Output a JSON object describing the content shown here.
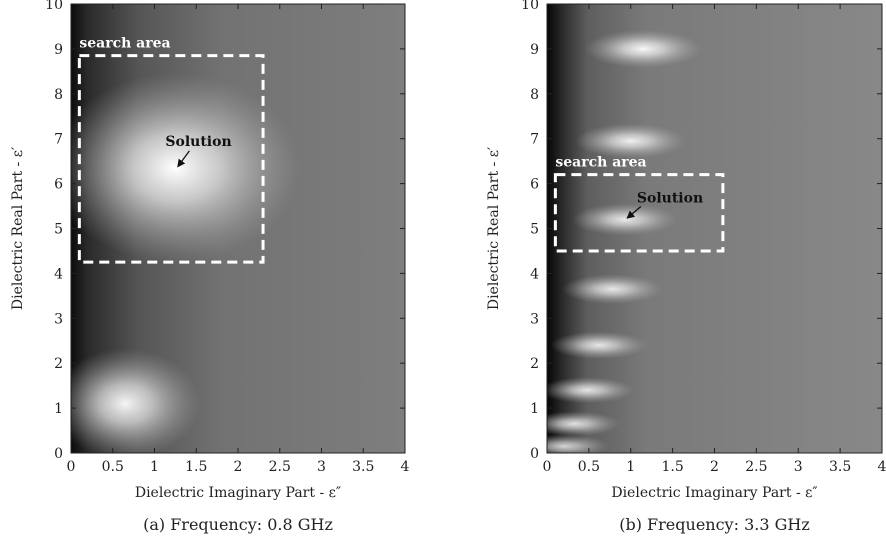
{
  "chart_data": [
    {
      "type": "heatmap",
      "caption": "(a) Frequency: 0.8 GHz",
      "xlabel": "Dielectric Imaginary Part - ε″",
      "ylabel": "Dielectric Real Part - ε′",
      "xlim": [
        0,
        4
      ],
      "ylim": [
        0,
        10
      ],
      "xticks": [
        "0",
        "0.5",
        "1",
        "1.5",
        "2",
        "2.5",
        "3",
        "3.5",
        "4"
      ],
      "yticks": [
        "0",
        "1",
        "2",
        "3",
        "4",
        "5",
        "6",
        "7",
        "8",
        "9",
        "10"
      ],
      "colormap": "grayscale",
      "peaks": [
        {
          "x": 1.25,
          "y": 6.35,
          "intensity": 1.0
        },
        {
          "x": 0.65,
          "y": 1.1,
          "intensity": 0.95
        }
      ],
      "search_area": {
        "label": "search area",
        "x_range": [
          0.1,
          2.3
        ],
        "y_range": [
          4.25,
          8.85
        ]
      },
      "solution": {
        "label": "Solution",
        "x": 1.25,
        "y": 6.35
      }
    },
    {
      "type": "heatmap",
      "caption": "(b) Frequency: 3.3 GHz",
      "xlabel": "Dielectric Imaginary Part - ε″",
      "ylabel": "Dielectric Real Part - ε′",
      "xlim": [
        0,
        4
      ],
      "ylim": [
        0,
        10
      ],
      "xticks": [
        "0",
        "0.5",
        "1",
        "1.5",
        "2",
        "2.5",
        "3",
        "3.5",
        "4"
      ],
      "yticks": [
        "0",
        "1",
        "2",
        "3",
        "4",
        "5",
        "6",
        "7",
        "8",
        "9",
        "10"
      ],
      "colormap": "grayscale",
      "peaks": [
        {
          "x": 1.15,
          "y": 9.0,
          "intensity": 0.95
        },
        {
          "x": 1.0,
          "y": 6.95,
          "intensity": 0.9
        },
        {
          "x": 0.93,
          "y": 5.2,
          "intensity": 0.85
        },
        {
          "x": 0.78,
          "y": 3.65,
          "intensity": 0.85
        },
        {
          "x": 0.62,
          "y": 2.4,
          "intensity": 0.85
        },
        {
          "x": 0.48,
          "y": 1.4,
          "intensity": 0.85
        },
        {
          "x": 0.32,
          "y": 0.65,
          "intensity": 0.85
        },
        {
          "x": 0.2,
          "y": 0.15,
          "intensity": 0.8
        }
      ],
      "search_area": {
        "label": "search area",
        "x_range": [
          0.1,
          2.1
        ],
        "y_range": [
          4.5,
          6.2
        ]
      },
      "solution": {
        "label": "Solution",
        "x": 0.93,
        "y": 5.2
      }
    }
  ]
}
